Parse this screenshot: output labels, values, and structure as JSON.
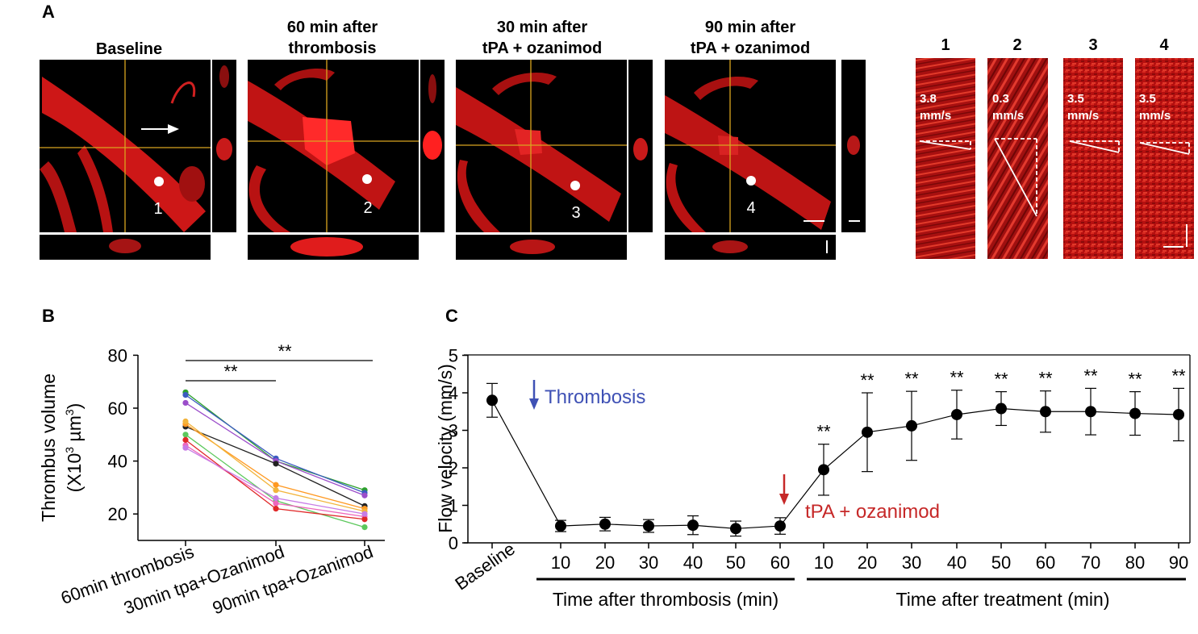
{
  "panel_a": {
    "label": "A",
    "columns": [
      {
        "title_line1": "Baseline",
        "title_line2": "",
        "point": "1"
      },
      {
        "title_line1": "60 min after",
        "title_line2": "thrombosis",
        "point": "2"
      },
      {
        "title_line1": "30 min after",
        "title_line2": "tPA + ozanimod",
        "point": "3"
      },
      {
        "title_line1": "90 min after",
        "title_line2": "tPA + ozanimod",
        "point": "4"
      }
    ],
    "linescans": [
      {
        "number": "1",
        "speed_value": "3.8",
        "speed_unit": "mm/s"
      },
      {
        "number": "2",
        "speed_value": "0.3",
        "speed_unit": "mm/s"
      },
      {
        "number": "3",
        "speed_value": "3.5",
        "speed_unit": "mm/s"
      },
      {
        "number": "4",
        "speed_value": "3.5",
        "speed_unit": "mm/s"
      }
    ],
    "colors": {
      "vessel": "#e01818",
      "crosshair": "#d9a520",
      "background": "#000000"
    }
  },
  "chart_data": [
    {
      "panel": "B",
      "type": "line",
      "ylabel_line1": "Thrombus volume",
      "ylabel_line2_prefix": "(X10",
      "ylabel_line2_sup1": "3",
      "ylabel_line2_mid": " µm",
      "ylabel_line2_sup2": "3",
      "ylabel_line2_suffix": ")",
      "categories": [
        "60min thrombosis",
        "30min tpa+Ozanimod",
        "90min tpa+Ozanimod"
      ],
      "ylim": [
        10,
        80
      ],
      "yticks": [
        20,
        40,
        60,
        80
      ],
      "series": [
        {
          "name": "green",
          "color": "#2ca02c",
          "values": [
            66,
            40,
            29
          ]
        },
        {
          "name": "blue",
          "color": "#3b5bc0",
          "values": [
            65,
            41,
            28
          ]
        },
        {
          "name": "purple",
          "color": "#9b4dca",
          "values": [
            62,
            40,
            27
          ]
        },
        {
          "name": "black",
          "color": "#222222",
          "values": [
            53,
            39,
            23
          ]
        },
        {
          "name": "orange",
          "color": "#ff9922",
          "values": [
            54,
            31,
            22
          ]
        },
        {
          "name": "gold",
          "color": "#f2b43c",
          "values": [
            55,
            29,
            21
          ]
        },
        {
          "name": "light-green",
          "color": "#5cc85c",
          "values": [
            50,
            25,
            15
          ]
        },
        {
          "name": "pink",
          "color": "#ee66bb",
          "values": [
            46,
            24,
            19
          ]
        },
        {
          "name": "red",
          "color": "#e02828",
          "values": [
            48,
            22,
            18
          ]
        },
        {
          "name": "violet",
          "color": "#c77ce6",
          "values": [
            45,
            26,
            20
          ]
        }
      ],
      "significance": [
        {
          "from": 0,
          "to": 1,
          "label": "**"
        },
        {
          "from": 0,
          "to": 2,
          "label": "**"
        }
      ]
    },
    {
      "panel": "C",
      "type": "line",
      "ylabel": "Flow velocity (mm/s)",
      "ylim": [
        0,
        5
      ],
      "yticks": [
        0,
        1,
        2,
        3,
        4,
        5
      ],
      "tick_labels": [
        "Baseline",
        "10",
        "20",
        "30",
        "40",
        "50",
        "60",
        "10",
        "20",
        "30",
        "40",
        "50",
        "60",
        "70",
        "80",
        "90"
      ],
      "values": [
        3.8,
        0.45,
        0.5,
        0.45,
        0.47,
        0.38,
        0.45,
        1.95,
        2.95,
        3.12,
        3.42,
        3.58,
        3.5,
        3.5,
        3.45,
        3.42
      ],
      "errors": [
        0.45,
        0.15,
        0.18,
        0.17,
        0.25,
        0.2,
        0.22,
        0.68,
        1.05,
        0.92,
        0.65,
        0.45,
        0.55,
        0.62,
        0.58,
        0.7
      ],
      "significance": [
        "",
        "",
        "",
        "",
        "",
        "",
        "",
        "**",
        "**",
        "**",
        "**",
        "**",
        "**",
        "**",
        "**",
        "**"
      ],
      "xlabel_thrombosis": "Time after thrombosis (min)",
      "xlabel_treatment": "Time after treatment (min)",
      "annotation_thrombosis": "Thrombosis",
      "annotation_treatment": "tPA + ozanimod",
      "annotation_thrombosis_color": "#3f51b5",
      "annotation_treatment_color": "#c62828"
    }
  ],
  "panel_b": {
    "label": "B"
  },
  "panel_c": {
    "label": "C"
  }
}
